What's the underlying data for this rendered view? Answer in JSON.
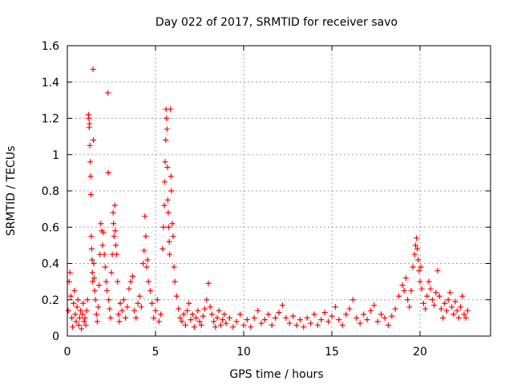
{
  "chart_data": {
    "type": "scatter",
    "title": "Day 022 of 2017, SRMTID for receiver savo",
    "xlabel": "GPS time / hours",
    "ylabel": "SRMTID / TECUs",
    "xlim": [
      0,
      24
    ],
    "ylim": [
      0,
      1.6
    ],
    "grid": true,
    "marker": "+",
    "color": "#ff0000",
    "x_ticks": [
      0,
      5,
      10,
      15,
      20
    ],
    "x_tick_labels": [
      "0",
      "5",
      "10",
      "15",
      "20"
    ],
    "y_ticks": [
      0,
      0.2,
      0.4,
      0.6,
      0.8,
      1.0,
      1.2,
      1.4,
      1.6
    ],
    "y_tick_labels": [
      "0",
      "0.2",
      "0.4",
      "0.6",
      "0.8",
      "1",
      "1.2",
      "1.4",
      "1.6"
    ],
    "series": [
      {
        "name": "SRMTID",
        "points": [
          [
            0.05,
            0.14
          ],
          [
            0.1,
            0.3
          ],
          [
            0.15,
            0.35
          ],
          [
            0.2,
            0.22
          ],
          [
            0.25,
            0.1
          ],
          [
            0.3,
            0.05
          ],
          [
            0.35,
            0.18
          ],
          [
            0.4,
            0.25
          ],
          [
            0.45,
            0.12
          ],
          [
            0.5,
            0.08
          ],
          [
            0.55,
            0.16
          ],
          [
            0.6,
            0.2
          ],
          [
            0.65,
            0.06
          ],
          [
            0.7,
            0.1
          ],
          [
            0.75,
            0.14
          ],
          [
            0.8,
            0.04
          ],
          [
            0.85,
            0.12
          ],
          [
            0.9,
            0.18
          ],
          [
            0.95,
            0.08
          ],
          [
            1.0,
            0.1
          ],
          [
            1.05,
            0.06
          ],
          [
            1.1,
            0.14
          ],
          [
            1.15,
            0.2
          ],
          [
            1.2,
            1.22
          ],
          [
            1.22,
            1.2
          ],
          [
            1.24,
            1.15
          ],
          [
            1.26,
            1.17
          ],
          [
            1.28,
            1.05
          ],
          [
            1.3,
            0.96
          ],
          [
            1.32,
            0.88
          ],
          [
            1.34,
            0.78
          ],
          [
            1.36,
            0.55
          ],
          [
            1.38,
            0.48
          ],
          [
            1.4,
            0.42
          ],
          [
            1.42,
            0.35
          ],
          [
            1.44,
            0.3
          ],
          [
            1.46,
            1.47
          ],
          [
            1.48,
            1.08
          ],
          [
            1.5,
            0.4
          ],
          [
            1.52,
            0.32
          ],
          [
            1.55,
            0.25
          ],
          [
            1.6,
            0.2
          ],
          [
            1.65,
            0.12
          ],
          [
            1.7,
            0.08
          ],
          [
            1.75,
            0.16
          ],
          [
            1.8,
            0.28
          ],
          [
            1.85,
            0.45
          ],
          [
            1.9,
            0.62
          ],
          [
            1.95,
            0.58
          ],
          [
            2.0,
            0.5
          ],
          [
            2.05,
            0.57
          ],
          [
            2.1,
            0.45
          ],
          [
            2.15,
            0.38
          ],
          [
            2.2,
            0.3
          ],
          [
            2.25,
            0.25
          ],
          [
            2.3,
            1.34
          ],
          [
            2.32,
            0.9
          ],
          [
            2.35,
            0.2
          ],
          [
            2.4,
            0.15
          ],
          [
            2.45,
            0.1
          ],
          [
            2.5,
            0.35
          ],
          [
            2.55,
            0.45
          ],
          [
            2.6,
            0.68
          ],
          [
            2.62,
            0.62
          ],
          [
            2.65,
            0.55
          ],
          [
            2.7,
            0.72
          ],
          [
            2.72,
            0.58
          ],
          [
            2.75,
            0.5
          ],
          [
            2.8,
            0.45
          ],
          [
            2.85,
            0.3
          ],
          [
            2.9,
            0.12
          ],
          [
            2.95,
            0.08
          ],
          [
            3.0,
            0.18
          ],
          [
            3.1,
            0.14
          ],
          [
            3.2,
            0.2
          ],
          [
            3.3,
            0.1
          ],
          [
            3.4,
            0.16
          ],
          [
            3.5,
            0.26
          ],
          [
            3.6,
            0.3
          ],
          [
            3.7,
            0.33
          ],
          [
            3.8,
            0.14
          ],
          [
            3.9,
            0.1
          ],
          [
            4.0,
            0.18
          ],
          [
            4.1,
            0.22
          ],
          [
            4.2,
            0.16
          ],
          [
            4.3,
            0.4
          ],
          [
            4.35,
            0.47
          ],
          [
            4.4,
            0.66
          ],
          [
            4.45,
            0.55
          ],
          [
            4.5,
            0.38
          ],
          [
            4.55,
            0.42
          ],
          [
            4.6,
            0.3
          ],
          [
            4.7,
            0.25
          ],
          [
            4.8,
            0.18
          ],
          [
            4.9,
            0.1
          ],
          [
            5.0,
            0.14
          ],
          [
            5.1,
            0.2
          ],
          [
            5.2,
            0.08
          ],
          [
            5.3,
            0.12
          ],
          [
            5.4,
            0.48
          ],
          [
            5.45,
            0.6
          ],
          [
            5.5,
            0.72
          ],
          [
            5.52,
            0.85
          ],
          [
            5.55,
            0.96
          ],
          [
            5.58,
            1.08
          ],
          [
            5.6,
            1.25
          ],
          [
            5.62,
            1.2
          ],
          [
            5.65,
            1.14
          ],
          [
            5.68,
            0.93
          ],
          [
            5.7,
            0.75
          ],
          [
            5.72,
            0.68
          ],
          [
            5.75,
            0.6
          ],
          [
            5.78,
            0.52
          ],
          [
            5.8,
            0.45
          ],
          [
            5.85,
            1.25
          ],
          [
            5.88,
            0.88
          ],
          [
            5.9,
            0.8
          ],
          [
            5.95,
            0.62
          ],
          [
            6.0,
            0.55
          ],
          [
            6.05,
            0.38
          ],
          [
            6.1,
            0.3
          ],
          [
            6.2,
            0.22
          ],
          [
            6.3,
            0.15
          ],
          [
            6.4,
            0.1
          ],
          [
            6.5,
            0.08
          ],
          [
            6.6,
            0.12
          ],
          [
            6.7,
            0.06
          ],
          [
            6.8,
            0.14
          ],
          [
            6.9,
            0.18
          ],
          [
            7.0,
            0.09
          ],
          [
            7.1,
            0.12
          ],
          [
            7.2,
            0.05
          ],
          [
            7.3,
            0.1
          ],
          [
            7.4,
            0.14
          ],
          [
            7.5,
            0.08
          ],
          [
            7.6,
            0.06
          ],
          [
            7.7,
            0.11
          ],
          [
            7.8,
            0.15
          ],
          [
            7.9,
            0.2
          ],
          [
            8.0,
            0.29
          ],
          [
            8.1,
            0.16
          ],
          [
            8.2,
            0.12
          ],
          [
            8.3,
            0.08
          ],
          [
            8.4,
            0.05
          ],
          [
            8.5,
            0.1
          ],
          [
            8.6,
            0.14
          ],
          [
            8.7,
            0.06
          ],
          [
            8.8,
            0.09
          ],
          [
            8.9,
            0.12
          ],
          [
            9.0,
            0.07
          ],
          [
            9.2,
            0.1
          ],
          [
            9.4,
            0.05
          ],
          [
            9.6,
            0.08
          ],
          [
            9.8,
            0.12
          ],
          [
            10.0,
            0.06
          ],
          [
            10.2,
            0.09
          ],
          [
            10.4,
            0.05
          ],
          [
            10.6,
            0.1
          ],
          [
            10.8,
            0.14
          ],
          [
            11.0,
            0.07
          ],
          [
            11.2,
            0.09
          ],
          [
            11.4,
            0.12
          ],
          [
            11.6,
            0.06
          ],
          [
            11.8,
            0.1
          ],
          [
            12.0,
            0.13
          ],
          [
            12.2,
            0.17
          ],
          [
            12.4,
            0.1
          ],
          [
            12.6,
            0.07
          ],
          [
            12.8,
            0.11
          ],
          [
            13.0,
            0.06
          ],
          [
            13.2,
            0.09
          ],
          [
            13.4,
            0.05
          ],
          [
            13.6,
            0.1
          ],
          [
            13.8,
            0.07
          ],
          [
            14.0,
            0.12
          ],
          [
            14.2,
            0.06
          ],
          [
            14.4,
            0.09
          ],
          [
            14.6,
            0.13
          ],
          [
            14.8,
            0.08
          ],
          [
            15.0,
            0.11
          ],
          [
            15.2,
            0.16
          ],
          [
            15.4,
            0.09
          ],
          [
            15.6,
            0.06
          ],
          [
            15.8,
            0.12
          ],
          [
            16.0,
            0.15
          ],
          [
            16.2,
            0.2
          ],
          [
            16.4,
            0.1
          ],
          [
            16.6,
            0.07
          ],
          [
            16.8,
            0.12
          ],
          [
            17.0,
            0.09
          ],
          [
            17.2,
            0.14
          ],
          [
            17.4,
            0.17
          ],
          [
            17.6,
            0.08
          ],
          [
            17.8,
            0.12
          ],
          [
            18.0,
            0.1
          ],
          [
            18.2,
            0.06
          ],
          [
            18.4,
            0.11
          ],
          [
            18.6,
            0.15
          ],
          [
            18.8,
            0.22
          ],
          [
            19.0,
            0.28
          ],
          [
            19.1,
            0.25
          ],
          [
            19.2,
            0.32
          ],
          [
            19.3,
            0.2
          ],
          [
            19.4,
            0.16
          ],
          [
            19.5,
            0.25
          ],
          [
            19.6,
            0.38
          ],
          [
            19.7,
            0.45
          ],
          [
            19.75,
            0.5
          ],
          [
            19.8,
            0.54
          ],
          [
            19.85,
            0.48
          ],
          [
            19.9,
            0.42
          ],
          [
            19.95,
            0.36
          ],
          [
            20.0,
            0.3
          ],
          [
            20.05,
            0.38
          ],
          [
            20.1,
            0.26
          ],
          [
            20.2,
            0.18
          ],
          [
            20.3,
            0.15
          ],
          [
            20.4,
            0.22
          ],
          [
            20.5,
            0.3
          ],
          [
            20.6,
            0.26
          ],
          [
            20.7,
            0.2
          ],
          [
            20.8,
            0.17
          ],
          [
            20.9,
            0.24
          ],
          [
            21.0,
            0.36
          ],
          [
            21.1,
            0.22
          ],
          [
            21.2,
            0.15
          ],
          [
            21.3,
            0.1
          ],
          [
            21.4,
            0.18
          ],
          [
            21.5,
            0.14
          ],
          [
            21.6,
            0.2
          ],
          [
            21.7,
            0.24
          ],
          [
            21.8,
            0.16
          ],
          [
            21.9,
            0.12
          ],
          [
            22.0,
            0.19
          ],
          [
            22.1,
            0.14
          ],
          [
            22.2,
            0.1
          ],
          [
            22.3,
            0.16
          ],
          [
            22.4,
            0.22
          ],
          [
            22.5,
            0.12
          ],
          [
            22.6,
            0.1
          ],
          [
            22.7,
            0.14
          ]
        ]
      }
    ]
  }
}
